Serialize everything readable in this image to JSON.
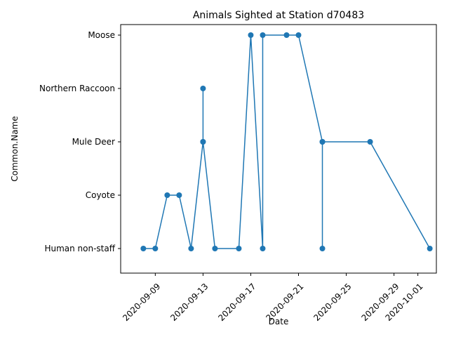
{
  "chart_data": {
    "type": "line",
    "title": "Animals Sighted at Station d70483",
    "xlabel": "Date",
    "ylabel": "Common.Name",
    "categories": [
      "Human non-staff",
      "Coyote",
      "Mule Deer",
      "Northern Raccoon",
      "Moose"
    ],
    "x_ticks": [
      "2020-09-09",
      "2020-09-13",
      "2020-09-17",
      "2020-09-21",
      "2020-09-25",
      "2020-09-29",
      "2020-10-01"
    ],
    "xlim": [
      "2020-09-07",
      "2020-10-02"
    ],
    "grid": false,
    "legend": "none",
    "color": "#1f77b4",
    "series": [
      {
        "points": [
          {
            "x": "2020-09-08",
            "y": "Human non-staff"
          },
          {
            "x": "2020-09-09",
            "y": "Human non-staff"
          },
          {
            "x": "2020-09-10",
            "y": "Coyote"
          },
          {
            "x": "2020-09-11",
            "y": "Coyote"
          },
          {
            "x": "2020-09-12",
            "y": "Human non-staff"
          },
          {
            "x": "2020-09-13",
            "y": "Mule Deer"
          },
          {
            "x": "2020-09-13",
            "y": "Northern Raccoon"
          },
          {
            "x": "2020-09-13",
            "y": "Mule Deer"
          },
          {
            "x": "2020-09-14",
            "y": "Human non-staff"
          },
          {
            "x": "2020-09-16",
            "y": "Human non-staff"
          },
          {
            "x": "2020-09-17",
            "y": "Moose"
          },
          {
            "x": "2020-09-18",
            "y": "Human non-staff"
          },
          {
            "x": "2020-09-18",
            "y": "Moose"
          },
          {
            "x": "2020-09-20",
            "y": "Moose"
          },
          {
            "x": "2020-09-21",
            "y": "Moose"
          },
          {
            "x": "2020-09-23",
            "y": "Mule Deer"
          },
          {
            "x": "2020-09-23",
            "y": "Human non-staff"
          },
          {
            "x": "2020-09-23",
            "y": "Mule Deer"
          },
          {
            "x": "2020-09-27",
            "y": "Mule Deer"
          },
          {
            "x": "2020-10-02",
            "y": "Human non-staff"
          }
        ]
      }
    ]
  }
}
